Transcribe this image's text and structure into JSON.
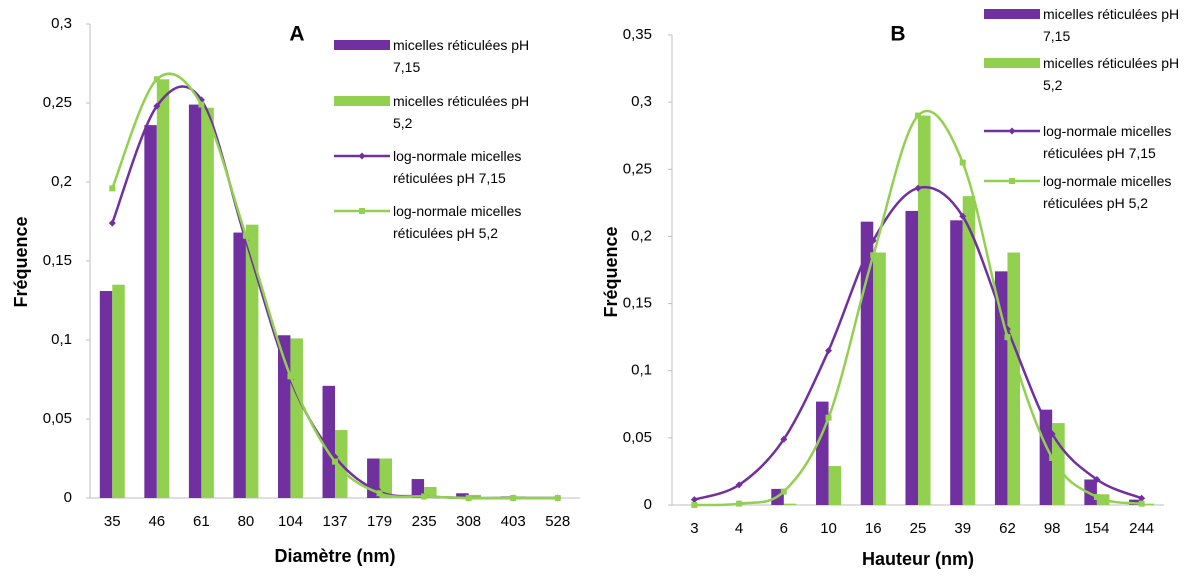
{
  "chart_data": [
    {
      "type": "bar",
      "title": "A",
      "x_label": "Diamètre (nm)",
      "y_label": "Fréquence",
      "categories": [
        "35",
        "46",
        "61",
        "80",
        "104",
        "137",
        "179",
        "235",
        "308",
        "403",
        "528"
      ],
      "ylim": [
        0,
        0.3
      ],
      "yticks": [
        0,
        {
          "value": 0.05,
          "label": "0,05"
        },
        {
          "value": 0.1,
          "label": "0,1"
        },
        {
          "value": 0.15,
          "label": "0,15"
        },
        {
          "value": 0.2,
          "label": "0,2"
        },
        {
          "value": 0.25,
          "label": "0,25"
        },
        {
          "value": 0.3,
          "label": "0,3"
        }
      ],
      "grid": false,
      "series": [
        {
          "name": "micelles réticulées pH 7,15",
          "type": "bar",
          "color": "#7030a0",
          "values": [
            0.131,
            0.236,
            0.249,
            0.168,
            0.103,
            0.071,
            0.025,
            0.012,
            0.003,
            0.001,
            0
          ]
        },
        {
          "name": "micelles réticulées pH 5,2",
          "type": "bar",
          "color": "#92d050",
          "values": [
            0.135,
            0.265,
            0.247,
            0.173,
            0.101,
            0.043,
            0.025,
            0.007,
            0.002,
            0.001,
            0
          ]
        },
        {
          "name": "log-normale micelles réticulées pH 7,15",
          "type": "line",
          "marker": "diamond",
          "color": "#7030a0",
          "values": [
            0.174,
            0.248,
            0.252,
            0.163,
            0.075,
            0.026,
            0.004,
            0.001,
            0,
            0,
            0
          ]
        },
        {
          "name": "log-normale micelles réticulées pH 5,2",
          "type": "line",
          "marker": "square",
          "color": "#92d050",
          "values": [
            0.196,
            0.265,
            0.249,
            0.166,
            0.077,
            0.023,
            0.003,
            0.001,
            0,
            0,
            0
          ]
        }
      ]
    },
    {
      "type": "bar",
      "title": "B",
      "x_label": "Hauteur (nm)",
      "y_label": "Fréquence",
      "categories": [
        "3",
        "4",
        "6",
        "10",
        "16",
        "25",
        "39",
        "62",
        "98",
        "154",
        "244"
      ],
      "ylim": [
        0,
        0.35
      ],
      "yticks": [
        0,
        {
          "value": 0.05,
          "label": "0,05"
        },
        {
          "value": 0.1,
          "label": "0,1"
        },
        {
          "value": 0.15,
          "label": "0,15"
        },
        {
          "value": 0.2,
          "label": "0,2"
        },
        {
          "value": 0.25,
          "label": "0,25"
        },
        {
          "value": 0.3,
          "label": "0,3"
        },
        {
          "value": 0.35,
          "label": "0,35"
        }
      ],
      "grid": false,
      "series": [
        {
          "name": "micelles réticulées pH 7,15",
          "type": "bar",
          "color": "#7030a0",
          "values": [
            0,
            0,
            0.012,
            0.077,
            0.211,
            0.219,
            0.212,
            0.174,
            0.071,
            0.019,
            0.004
          ]
        },
        {
          "name": "micelles réticulées pH 5,2",
          "type": "bar",
          "color": "#92d050",
          "values": [
            0,
            0,
            0.001,
            0.029,
            0.188,
            0.29,
            0.23,
            0.188,
            0.061,
            0.008,
            0.001
          ]
        },
        {
          "name": "log-normale micelles réticulées pH 7,15",
          "type": "line",
          "marker": "diamond",
          "color": "#7030a0",
          "values": [
            0.004,
            0.015,
            0.049,
            0.115,
            0.197,
            0.236,
            0.215,
            0.131,
            0.053,
            0.019,
            0.005
          ]
        },
        {
          "name": "log-normale micelles réticulées pH 5,2",
          "type": "line",
          "marker": "square",
          "color": "#92d050",
          "values": [
            0,
            0.001,
            0.01,
            0.065,
            0.186,
            0.29,
            0.255,
            0.125,
            0.035,
            0.006,
            0.001
          ]
        }
      ]
    }
  ]
}
